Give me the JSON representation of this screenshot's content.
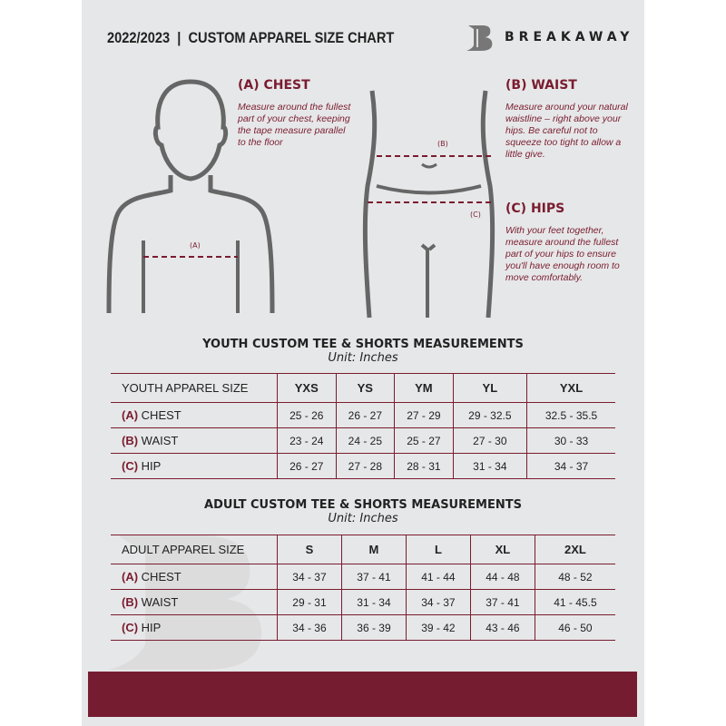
{
  "header": {
    "title": "2022/2023  |  CUSTOM APPAREL SIZE CHART",
    "brand": "BREAKAWAY",
    "logo_letter": "B"
  },
  "measures": {
    "chest": {
      "title": "(A) CHEST",
      "text": "Measure around the fullest part of your chest, keeping the tape measure parallel to the floor",
      "marker": "(A)"
    },
    "waist": {
      "title": "(B) WAIST",
      "text": "Measure around your natural waistline – right above your hips. Be careful not to squeeze too tight to allow a little give.",
      "marker": "(B)"
    },
    "hips": {
      "title": "(C) HIPS",
      "text": "With your feet together, measure around the fullest part of your hips to ensure you'll have enough room to move comfortably.",
      "marker": "(C)"
    }
  },
  "accent": "#7a1c30",
  "youth": {
    "heading": "YOUTH CUSTOM TEE & SHORTS MEASUREMENTS",
    "unit": "Unit: Inches",
    "size_label": "YOUTH APPAREL SIZE",
    "sizes": [
      "YXS",
      "YS",
      "YM",
      "YL",
      "YXL"
    ],
    "rows": [
      {
        "tag": "(A)",
        "name": "CHEST",
        "values": [
          "25 - 26",
          "26 - 27",
          "27 - 29",
          "29 - 32.5",
          "32.5 - 35.5"
        ]
      },
      {
        "tag": "(B)",
        "name": "WAIST",
        "values": [
          "23 - 24",
          "24 - 25",
          "25 - 27",
          "27 - 30",
          "30 - 33"
        ]
      },
      {
        "tag": "(C)",
        "name": "HIP",
        "values": [
          "26 - 27",
          "27 - 28",
          "28 - 31",
          "31 - 34",
          "34 - 37"
        ]
      }
    ]
  },
  "adult": {
    "heading": "ADULT CUSTOM TEE & SHORTS MEASUREMENTS",
    "unit": "Unit: Inches",
    "size_label": "ADULT APPAREL SIZE",
    "sizes": [
      "S",
      "M",
      "L",
      "XL",
      "2XL"
    ],
    "rows": [
      {
        "tag": "(A)",
        "name": "CHEST",
        "values": [
          "34 - 37",
          "37 - 41",
          "41 - 44",
          "44 - 48",
          "48 - 52"
        ]
      },
      {
        "tag": "(B)",
        "name": "WAIST",
        "values": [
          "29 - 31",
          "31 - 34",
          "34 - 37",
          "37 - 41",
          "41 - 45.5"
        ]
      },
      {
        "tag": "(C)",
        "name": "HIP",
        "values": [
          "34 - 36",
          "36 - 39",
          "39 - 42",
          "43 - 46",
          "46 - 50"
        ]
      }
    ]
  }
}
